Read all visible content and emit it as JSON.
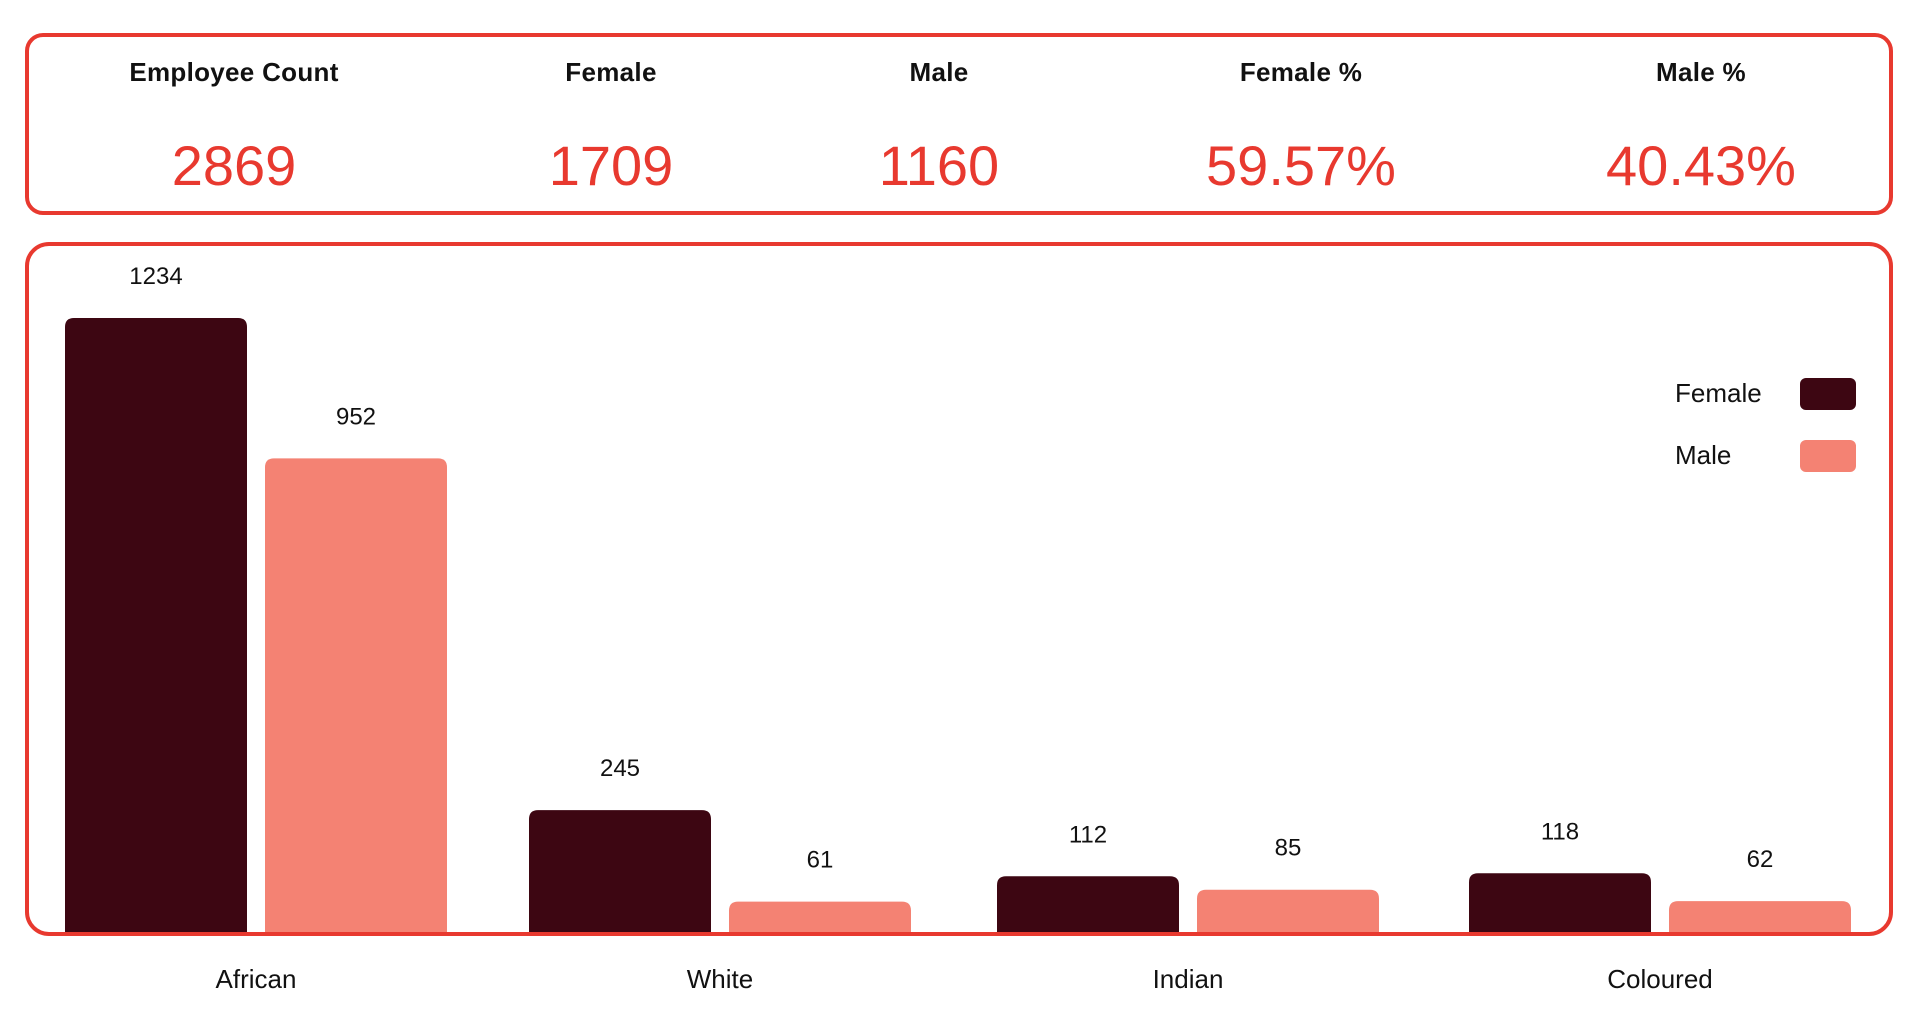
{
  "kpis": [
    {
      "label": "Employee Count",
      "value": "2869"
    },
    {
      "label": "Female",
      "value": "1709"
    },
    {
      "label": "Male",
      "value": "1160"
    },
    {
      "label": "Female %",
      "value": "59.57%"
    },
    {
      "label": "Male %",
      "value": "40.43%"
    }
  ],
  "colors": {
    "accent": "#e8392f",
    "female": "#3d0612",
    "male": "#f48273"
  },
  "chart_data": {
    "type": "bar",
    "categories": [
      "African",
      "White",
      "Indian",
      "Coloured"
    ],
    "series": [
      {
        "name": "Female",
        "values": [
          1234,
          245,
          112,
          118
        ]
      },
      {
        "name": "Male",
        "values": [
          952,
          61,
          85,
          62
        ]
      }
    ],
    "ylim": [
      0,
      1234
    ],
    "grid": false,
    "legend": "top-right"
  }
}
